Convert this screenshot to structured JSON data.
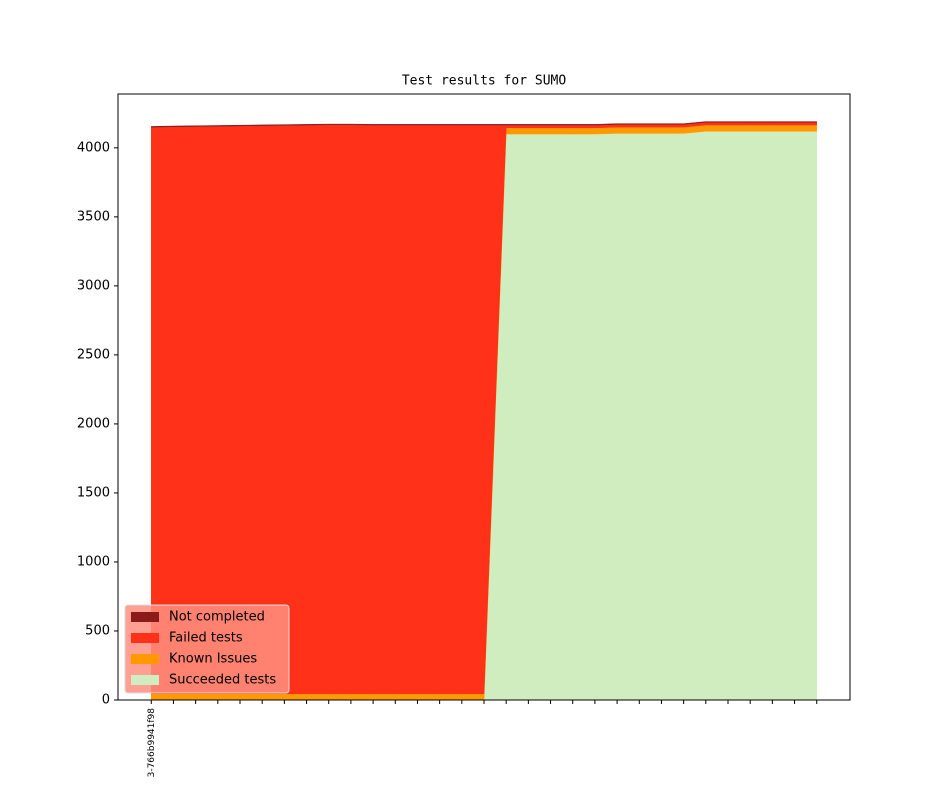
{
  "chart_data": {
    "type": "stacked_area",
    "title": "Test results for SUMO",
    "categories": [
      "3-766b9941f98",
      null,
      null,
      null,
      null,
      null,
      null,
      null,
      null,
      null,
      null,
      null,
      null,
      null,
      null,
      null,
      null,
      null,
      null,
      null,
      null,
      null,
      null,
      null,
      null,
      null,
      null,
      null,
      null,
      null,
      null
    ],
    "series": [
      {
        "name": "Succeeded tests",
        "color": "#cfedbf",
        "values": [
          0,
          0,
          0,
          0,
          0,
          0,
          0,
          0,
          0,
          0,
          0,
          0,
          0,
          0,
          0,
          0,
          4100,
          4100,
          4100,
          4100,
          4100,
          4105,
          4105,
          4105,
          4105,
          4120,
          4120,
          4120,
          4120,
          4120,
          4120
        ]
      },
      {
        "name": "Known Issues",
        "color": "#ff9900",
        "values": [
          45,
          45,
          45,
          45,
          45,
          45,
          45,
          45,
          45,
          45,
          45,
          45,
          45,
          45,
          45,
          45,
          45,
          45,
          45,
          45,
          45,
          45,
          45,
          45,
          45,
          45,
          45,
          45,
          45,
          45,
          45
        ]
      },
      {
        "name": "Failed tests",
        "color": "#ff3119",
        "values": [
          4105,
          4108,
          4110,
          4112,
          4114,
          4116,
          4118,
          4120,
          4122,
          4122,
          4120,
          4120,
          4120,
          4120,
          4120,
          4120,
          20,
          20,
          20,
          20,
          20,
          20,
          20,
          20,
          20,
          20,
          20,
          20,
          20,
          20,
          20
        ]
      },
      {
        "name": "Not completed",
        "color": "#8b1a1a",
        "values": [
          5,
          5,
          5,
          5,
          5,
          5,
          5,
          5,
          5,
          5,
          5,
          5,
          5,
          5,
          5,
          5,
          5,
          5,
          5,
          5,
          5,
          5,
          5,
          5,
          5,
          5,
          5,
          5,
          5,
          5,
          5
        ]
      }
    ],
    "ylim": [
      0,
      4390
    ],
    "yticks": [
      0,
      500,
      1000,
      1500,
      2000,
      2500,
      3000,
      3500,
      4000
    ],
    "legend": "lower left"
  }
}
